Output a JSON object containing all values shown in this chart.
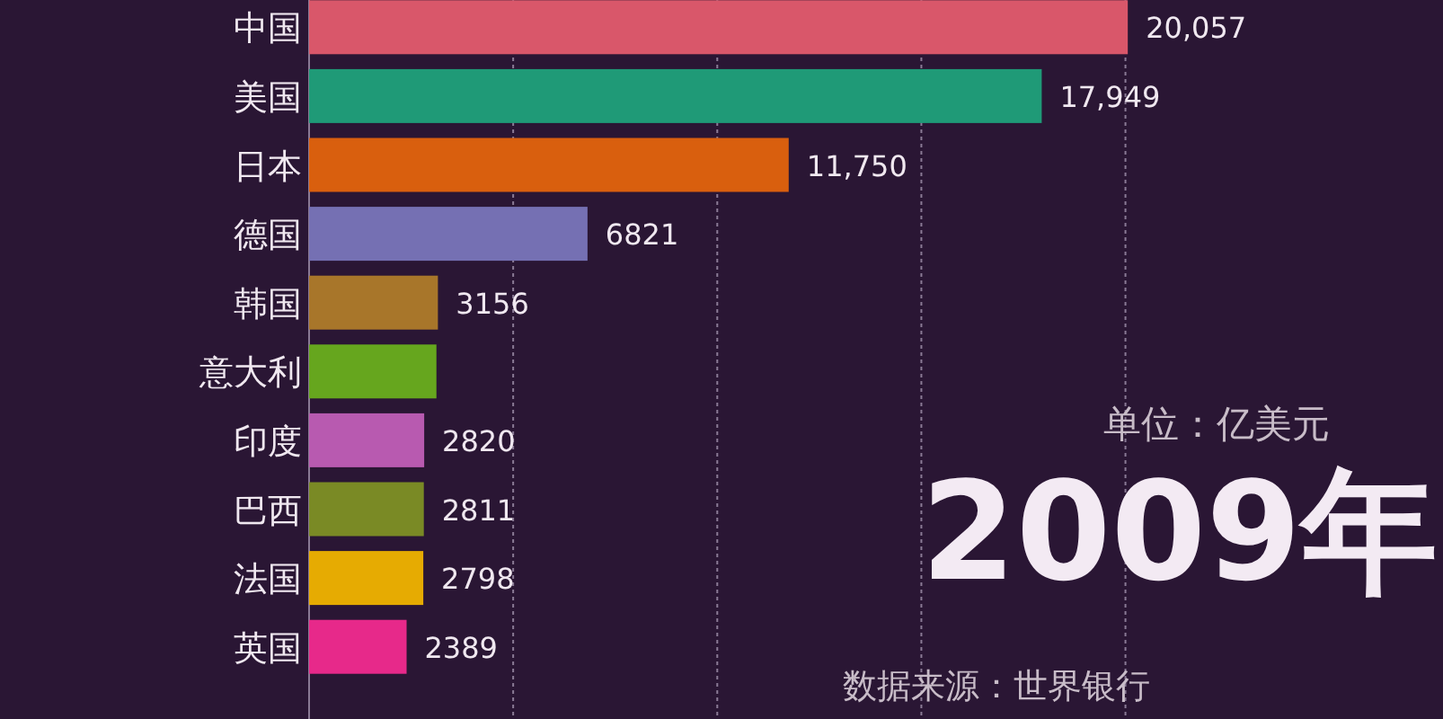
{
  "chart_data": {
    "type": "bar",
    "orientation": "horizontal",
    "categories": [
      "中国",
      "美国",
      "日本",
      "德国",
      "韩国",
      "意大利",
      "印度",
      "巴西",
      "法国",
      "英国"
    ],
    "values": [
      20057,
      17949,
      11750,
      6821,
      3156,
      3120,
      2820,
      2811,
      2798,
      2389
    ],
    "colors": [
      "#d9576a",
      "#1f9a77",
      "#d95f0e",
      "#7570b3",
      "#a8762a",
      "#66a61e",
      "#b85ab0",
      "#7a8a25",
      "#e6ab02",
      "#e7298a"
    ],
    "value_labels": [
      "20,057",
      "17,949",
      "11,750",
      "6821",
      "3156",
      null,
      "2820",
      "2811",
      "2798",
      "2389"
    ],
    "xticks": [
      {
        "value": 5000,
        "label": null
      },
      {
        "value": 10000,
        "label": null
      },
      {
        "value": 15000,
        "label": null
      },
      {
        "value": 20000,
        "label": null
      }
    ],
    "grid": "x",
    "tick_labels": "y",
    "annotations": [
      "单位：亿美元",
      "2009年",
      "数据来源：世界银行"
    ]
  }
}
